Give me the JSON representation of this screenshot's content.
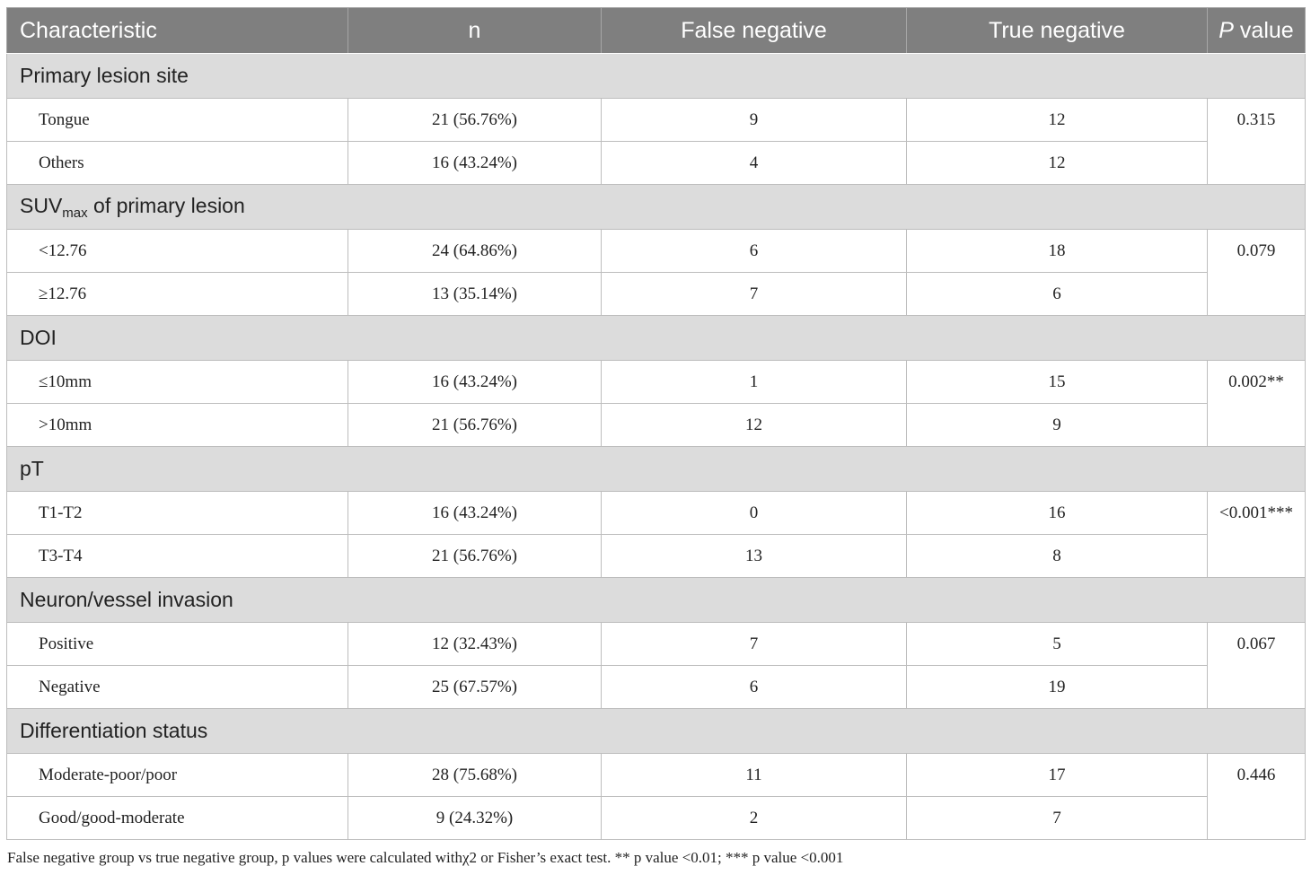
{
  "header": {
    "characteristic": "Characteristic",
    "n": "n",
    "false_negative": "False negative",
    "true_negative": "True negative",
    "p_italic": "P",
    "p_rest": " value"
  },
  "groups": [
    {
      "title": "Primary lesion site",
      "p": "0.315",
      "rows": [
        {
          "label": "Tongue",
          "n": "21 (56.76%)",
          "fn": "9",
          "tn": "12"
        },
        {
          "label": "Others",
          "n": "16 (43.24%)",
          "fn": "4",
          "tn": "12"
        }
      ]
    },
    {
      "title_main": "SUV",
      "title_sub": "max",
      "title_rest": " of primary lesion",
      "p": "0.079",
      "rows": [
        {
          "label": "<12.76",
          "n": "24 (64.86%)",
          "fn": "6",
          "tn": "18"
        },
        {
          "label": "≥12.76",
          "n": "13 (35.14%)",
          "fn": "7",
          "tn": "6"
        }
      ]
    },
    {
      "title": "DOI",
      "p": "0.002**",
      "rows": [
        {
          "label": "≤10mm",
          "n": "16 (43.24%)",
          "fn": "1",
          "tn": "15"
        },
        {
          "label": ">10mm",
          "n": "21 (56.76%)",
          "fn": "12",
          "tn": "9"
        }
      ]
    },
    {
      "title": "pT",
      "p": "<0.001***",
      "rows": [
        {
          "label": "T1-T2",
          "n": "16 (43.24%)",
          "fn": "0",
          "tn": "16"
        },
        {
          "label": "T3-T4",
          "n": "21 (56.76%)",
          "fn": "13",
          "tn": "8"
        }
      ]
    },
    {
      "title": "Neuron/vessel invasion",
      "p": "0.067",
      "rows": [
        {
          "label": "Positive",
          "n": "12 (32.43%)",
          "fn": "7",
          "tn": "5"
        },
        {
          "label": "Negative",
          "n": "25 (67.57%)",
          "fn": "6",
          "tn": "19"
        }
      ]
    },
    {
      "title": "Differentiation status",
      "p": "0.446",
      "rows": [
        {
          "label": "Moderate-poor/poor",
          "n": "28 (75.68%)",
          "fn": "11",
          "tn": "17"
        },
        {
          "label": "Good/good-moderate",
          "n": "9 (24.32%)",
          "fn": "2",
          "tn": "7"
        }
      ]
    }
  ],
  "footnote": "False negative group vs true negative group, p values were calculated withχ2 or Fisher’s exact test. ** p value <0.01; *** p value <0.001",
  "colors": {
    "header_bg": "#7f7f7f",
    "group_bg": "#dcdcdc",
    "border": "#bdbdbd"
  }
}
